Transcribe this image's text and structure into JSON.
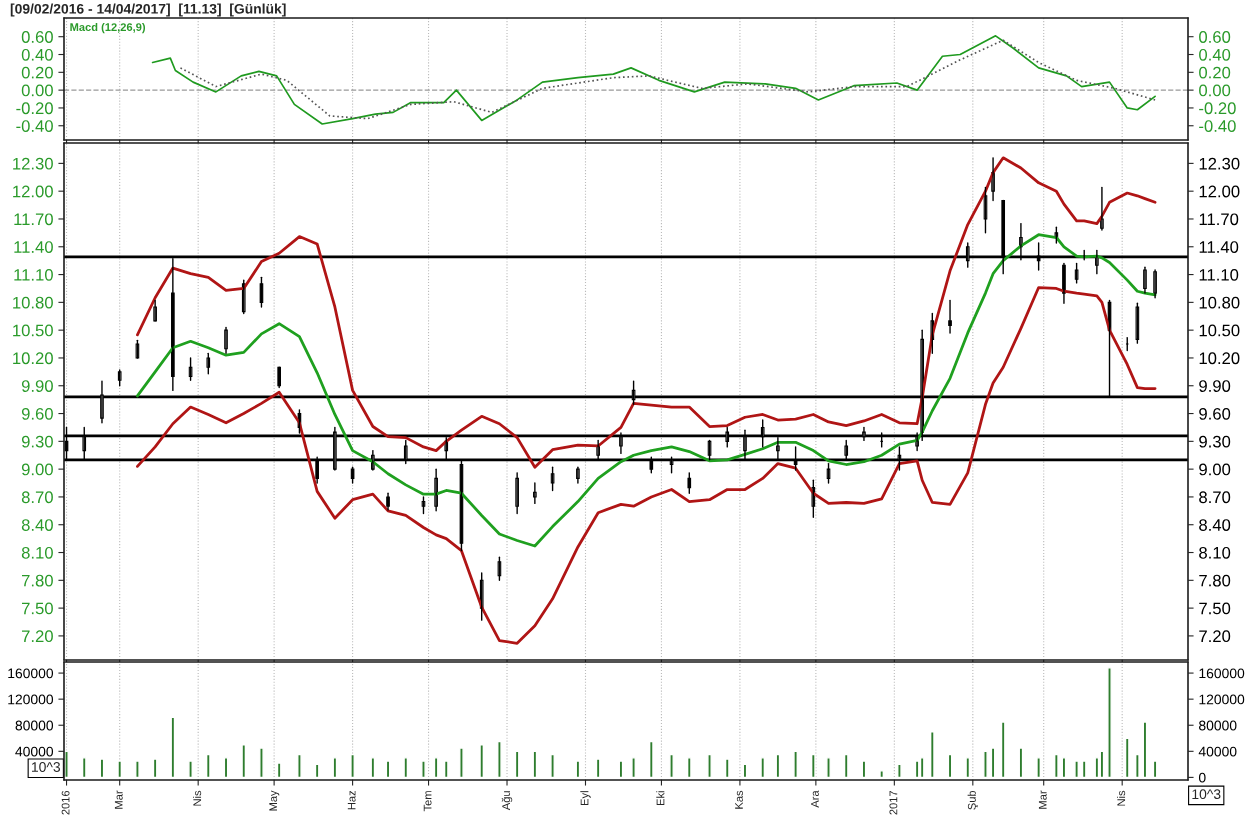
{
  "chart_data": [
    {
      "type": "line",
      "title": "[09/02/2016 - 14/04/2017]  [11.13]  [Günlük]",
      "annotations": [
        "Macd (12,26,9)"
      ],
      "series": [
        {
          "color": "#1f9a1f",
          "line_style": "solid",
          "x": [
            "2016-03-14",
            "2016-03-21",
            "2016-03-23",
            "2016-03-30",
            "2016-04-08",
            "2016-04-18",
            "2016-04-25",
            "2016-05-02",
            "2016-05-09",
            "2016-05-20",
            "2016-06-01",
            "2016-06-10",
            "2016-06-17",
            "2016-06-24",
            "2016-07-07",
            "2016-07-12",
            "2016-07-22",
            "2016-08-05",
            "2016-08-15",
            "2016-08-29",
            "2016-09-12",
            "2016-09-19",
            "2016-09-30",
            "2016-10-14",
            "2016-10-26",
            "2016-11-11",
            "2016-11-23",
            "2016-12-02",
            "2016-12-16",
            "2017-01-02",
            "2017-01-10",
            "2017-01-20",
            "2017-01-27",
            "2017-02-10",
            "2017-02-17",
            "2017-02-27",
            "2017-03-10",
            "2017-03-16",
            "2017-03-27",
            "2017-04-03",
            "2017-04-07",
            "2017-04-14"
          ],
          "values": [
            0.31,
            0.36,
            0.22,
            0.09,
            -0.02,
            0.16,
            0.21,
            0.16,
            -0.16,
            -0.38,
            -0.32,
            -0.27,
            -0.25,
            -0.14,
            -0.14,
            0.0,
            -0.34,
            -0.11,
            0.09,
            0.14,
            0.18,
            0.25,
            0.11,
            -0.02,
            0.09,
            0.07,
            0.02,
            -0.11,
            0.05,
            0.08,
            0.0,
            0.38,
            0.4,
            0.61,
            0.47,
            0.25,
            0.16,
            0.04,
            0.09,
            -0.2,
            -0.22,
            -0.07
          ]
        },
        {
          "color": "#555555",
          "line_style": "dotted",
          "x": [
            "2016-03-25",
            "2016-04-08",
            "2016-04-26",
            "2016-05-06",
            "2016-05-23",
            "2016-06-07",
            "2016-06-24",
            "2016-07-11",
            "2016-07-26",
            "2016-08-15",
            "2016-09-12",
            "2016-09-26",
            "2016-10-17",
            "2016-11-04",
            "2016-11-28",
            "2016-12-16",
            "2017-01-06",
            "2017-01-27",
            "2017-02-13",
            "2017-02-27",
            "2017-03-14",
            "2017-03-29",
            "2017-04-14"
          ],
          "values": [
            0.25,
            0.04,
            0.18,
            0.11,
            -0.29,
            -0.32,
            -0.16,
            -0.13,
            -0.25,
            0.02,
            0.14,
            0.16,
            0.02,
            0.07,
            -0.02,
            0.04,
            0.04,
            0.34,
            0.56,
            0.31,
            0.11,
            0.02,
            -0.11
          ]
        }
      ],
      "ref_lines": [
        {
          "axis": "y",
          "value": 0,
          "color": "#999999",
          "line_style": "dashed"
        }
      ],
      "xlim": [
        "2016-02-08",
        "2017-04-27"
      ],
      "xticks": [
        {
          "value": "2016-02-09",
          "label": null
        },
        {
          "value": "2016-03-01",
          "label": null
        },
        {
          "value": "2016-04-01",
          "label": null
        },
        {
          "value": "2016-05-01",
          "label": null
        },
        {
          "value": "2016-06-01",
          "label": null
        },
        {
          "value": "2016-07-01",
          "label": null
        },
        {
          "value": "2016-08-01",
          "label": null
        },
        {
          "value": "2016-09-01",
          "label": null
        },
        {
          "value": "2016-10-01",
          "label": null
        },
        {
          "value": "2016-11-01",
          "label": null
        },
        {
          "value": "2016-12-01",
          "label": null
        },
        {
          "value": "2017-01-01",
          "label": null
        },
        {
          "value": "2017-02-01",
          "label": null
        },
        {
          "value": "2017-03-01",
          "label": null
        },
        {
          "value": "2017-04-01",
          "label": null
        }
      ],
      "ylim": [
        -0.56,
        0.81
      ],
      "yticks": [
        {
          "value": -0.4,
          "label": "-0.40"
        },
        {
          "value": -0.2,
          "label": "-0.20"
        },
        {
          "value": 0,
          "label": "0.00"
        },
        {
          "value": 0.2,
          "label": "0.20"
        },
        {
          "value": 0.4,
          "label": "0.40"
        },
        {
          "value": 0.6,
          "label": "0.60"
        }
      ],
      "y2lim": [
        -0.56,
        0.81
      ],
      "y2ticks": [
        {
          "value": -0.4,
          "label": "-0.40"
        },
        {
          "value": -0.2,
          "label": "-0.20"
        },
        {
          "value": 0,
          "label": "0.00"
        },
        {
          "value": 0.2,
          "label": "0.20"
        },
        {
          "value": 0.4,
          "label": "0.40"
        },
        {
          "value": 0.6,
          "label": "0.60"
        }
      ],
      "grid": "x",
      "tick_labels": "y"
    },
    {
      "type": "candlestick",
      "x": [
        "2016-02-09",
        "2016-02-16",
        "2016-02-23",
        "2016-03-01",
        "2016-03-08",
        "2016-03-15",
        "2016-03-22",
        "2016-03-29",
        "2016-04-05",
        "2016-04-12",
        "2016-04-19",
        "2016-04-26",
        "2016-05-03",
        "2016-05-11",
        "2016-05-18",
        "2016-05-25",
        "2016-06-01",
        "2016-06-09",
        "2016-06-15",
        "2016-06-22",
        "2016-06-29",
        "2016-07-04",
        "2016-07-08",
        "2016-07-14",
        "2016-07-22",
        "2016-07-29",
        "2016-08-05",
        "2016-08-12",
        "2016-08-19",
        "2016-08-29",
        "2016-09-06",
        "2016-09-15",
        "2016-09-20",
        "2016-09-27",
        "2016-10-05",
        "2016-10-12",
        "2016-10-20",
        "2016-10-27",
        "2016-11-03",
        "2016-11-10",
        "2016-11-16",
        "2016-11-23",
        "2016-11-30",
        "2016-12-06",
        "2016-12-13",
        "2016-12-20",
        "2016-12-27",
        "2017-01-03",
        "2017-01-10",
        "2017-01-12",
        "2017-01-16",
        "2017-01-23",
        "2017-01-30",
        "2017-02-06",
        "2017-02-09",
        "2017-02-13",
        "2017-02-20",
        "2017-02-27",
        "2017-03-06",
        "2017-03-09",
        "2017-03-14",
        "2017-03-17",
        "2017-03-22",
        "2017-03-24",
        "2017-03-27",
        "2017-04-03",
        "2017-04-07",
        "2017-04-10",
        "2017-04-14"
      ],
      "ohlc": [
        [
          9.3,
          9.45,
          9.1,
          9.2
        ],
        [
          9.2,
          9.45,
          9.1,
          9.35
        ],
        [
          9.55,
          9.95,
          9.5,
          9.8
        ],
        [
          9.96,
          10.07,
          9.9,
          10.05
        ],
        [
          10.2,
          10.39,
          10.2,
          10.35
        ],
        [
          10.6,
          10.82,
          10.6,
          10.75
        ],
        [
          10.9,
          11.27,
          9.85,
          10.0
        ],
        [
          10.0,
          10.2,
          9.96,
          10.1
        ],
        [
          10.1,
          10.25,
          10.03,
          10.2
        ],
        [
          10.3,
          10.53,
          10.25,
          10.5
        ],
        [
          10.7,
          11.04,
          10.68,
          11.0
        ],
        [
          11.0,
          11.07,
          10.75,
          10.8
        ],
        [
          10.1,
          10.1,
          9.88,
          9.9
        ],
        [
          9.6,
          9.64,
          9.39,
          9.45
        ],
        [
          9.1,
          9.13,
          8.85,
          8.9
        ],
        [
          9.0,
          9.45,
          8.99,
          9.4
        ],
        [
          9.0,
          9.02,
          8.85,
          8.9
        ],
        [
          9.0,
          9.2,
          8.99,
          9.15
        ],
        [
          8.7,
          8.74,
          8.56,
          8.6
        ],
        [
          9.1,
          9.31,
          9.06,
          9.25
        ],
        [
          8.6,
          8.7,
          8.52,
          8.65
        ],
        [
          8.6,
          9.0,
          8.55,
          8.9
        ],
        [
          9.2,
          9.34,
          9.1,
          9.3
        ],
        [
          9.05,
          9.1,
          8.12,
          8.2
        ],
        [
          7.5,
          7.88,
          7.37,
          7.8
        ],
        [
          7.85,
          8.05,
          7.8,
          8.0
        ],
        [
          8.6,
          8.96,
          8.52,
          8.9
        ],
        [
          8.7,
          8.85,
          8.63,
          8.75
        ],
        [
          8.85,
          9.02,
          8.77,
          8.95
        ],
        [
          8.9,
          9.02,
          8.85,
          9.0
        ],
        [
          9.15,
          9.31,
          9.1,
          9.25
        ],
        [
          9.25,
          9.39,
          9.17,
          9.35
        ],
        [
          9.75,
          9.95,
          9.7,
          9.85
        ],
        [
          9.1,
          9.13,
          8.96,
          9.0
        ],
        [
          9.05,
          9.13,
          8.96,
          9.1
        ],
        [
          8.9,
          8.96,
          8.74,
          8.8
        ],
        [
          9.15,
          9.31,
          9.1,
          9.3
        ],
        [
          9.3,
          9.45,
          9.24,
          9.4
        ],
        [
          9.2,
          9.42,
          9.1,
          9.35
        ],
        [
          9.35,
          9.53,
          9.24,
          9.45
        ],
        [
          9.2,
          9.34,
          9.1,
          9.25
        ],
        [
          9.1,
          9.24,
          8.99,
          9.05
        ],
        [
          8.6,
          8.88,
          8.48,
          8.8
        ],
        [
          8.9,
          9.06,
          8.85,
          9.0
        ],
        [
          9.15,
          9.31,
          9.1,
          9.25
        ],
        [
          9.35,
          9.45,
          9.31,
          9.4
        ],
        [
          9.3,
          9.39,
          9.24,
          9.3
        ],
        [
          9.1,
          9.24,
          8.99,
          9.15
        ],
        [
          9.25,
          9.39,
          9.2,
          9.35
        ],
        [
          9.4,
          10.5,
          9.31,
          10.4
        ],
        [
          10.4,
          10.68,
          10.25,
          10.6
        ],
        [
          10.6,
          10.82,
          10.47,
          10.55
        ],
        [
          11.25,
          11.44,
          11.18,
          11.4
        ],
        [
          11.7,
          12.04,
          11.55,
          11.95
        ],
        [
          12.0,
          12.36,
          11.9,
          12.2
        ],
        [
          11.9,
          11.9,
          11.11,
          11.3
        ],
        [
          11.4,
          11.65,
          11.26,
          11.5
        ],
        [
          11.3,
          11.44,
          11.15,
          11.25
        ],
        [
          11.5,
          11.61,
          11.44,
          11.55
        ],
        [
          11.2,
          11.22,
          10.79,
          10.9
        ],
        [
          11.05,
          11.22,
          11.01,
          11.15
        ],
        [
          11.3,
          11.36,
          11.26,
          11.3
        ],
        [
          11.2,
          11.36,
          11.11,
          11.3
        ],
        [
          11.6,
          12.04,
          11.58,
          11.7
        ],
        [
          10.8,
          10.82,
          9.78,
          10.5
        ],
        [
          10.35,
          10.42,
          10.28,
          10.35
        ],
        [
          10.4,
          10.79,
          10.36,
          10.75
        ],
        [
          10.95,
          11.18,
          10.9,
          11.15
        ],
        [
          10.9,
          11.15,
          10.85,
          11.13
        ]
      ],
      "series": [
        {
          "type": "line",
          "color": "#b01515",
          "values": [
            null,
            null,
            null,
            null,
            10.45,
            10.85,
            11.17,
            11.11,
            11.07,
            10.93,
            10.95,
            11.24,
            11.33,
            11.51,
            11.43,
            10.75,
            9.85,
            9.46,
            9.35,
            9.34,
            9.24,
            9.2,
            9.3,
            9.42,
            9.57,
            9.49,
            9.34,
            9.02,
            9.21,
            9.26,
            9.25,
            9.45,
            9.71,
            9.69,
            9.67,
            9.67,
            9.46,
            9.47,
            9.56,
            9.59,
            9.53,
            9.54,
            9.59,
            9.51,
            9.47,
            9.52,
            9.59,
            9.5,
            9.49,
            9.77,
            10.45,
            11.14,
            11.64,
            12.0,
            12.2,
            12.36,
            12.25,
            12.09,
            12.0,
            11.86,
            11.68,
            11.68,
            11.65,
            11.73,
            11.88,
            11.98,
            11.95,
            11.92,
            11.88
          ]
        },
        {
          "type": "line",
          "color": "#1fa01f",
          "values": [
            null,
            null,
            null,
            null,
            9.79,
            10.05,
            10.31,
            10.38,
            10.31,
            10.23,
            10.26,
            10.46,
            10.57,
            10.43,
            10.04,
            9.59,
            9.2,
            9.08,
            8.95,
            8.83,
            8.73,
            8.73,
            8.77,
            8.74,
            8.5,
            8.3,
            8.23,
            8.17,
            8.38,
            8.65,
            8.9,
            9.08,
            9.15,
            9.2,
            9.24,
            9.19,
            9.09,
            9.1,
            9.16,
            9.22,
            9.29,
            9.29,
            9.2,
            9.09,
            9.05,
            9.08,
            9.15,
            9.27,
            9.31,
            9.4,
            9.63,
            9.98,
            10.47,
            10.9,
            11.11,
            11.25,
            11.41,
            11.53,
            11.5,
            11.4,
            11.3,
            11.29,
            11.3,
            11.28,
            11.23,
            11.04,
            10.92,
            10.9,
            10.88
          ]
        },
        {
          "type": "line",
          "color": "#b01515",
          "values": [
            null,
            null,
            null,
            null,
            9.03,
            9.24,
            9.49,
            9.67,
            9.59,
            9.5,
            9.6,
            9.71,
            9.83,
            9.5,
            8.76,
            8.47,
            8.67,
            8.73,
            8.55,
            8.5,
            8.37,
            8.29,
            8.25,
            8.12,
            7.51,
            7.15,
            7.12,
            7.31,
            7.6,
            8.16,
            8.53,
            8.62,
            8.6,
            8.7,
            8.78,
            8.65,
            8.67,
            8.78,
            8.78,
            8.9,
            9.06,
            9.01,
            8.74,
            8.63,
            8.64,
            8.63,
            8.68,
            9.06,
            9.09,
            8.88,
            8.64,
            8.62,
            8.96,
            9.7,
            9.93,
            10.1,
            10.52,
            10.96,
            10.95,
            10.92,
            10.9,
            10.89,
            10.87,
            10.8,
            10.5,
            10.13,
            9.88,
            9.87,
            9.87
          ]
        }
      ],
      "ref_lines": [
        {
          "axis": "y",
          "value": 11.29,
          "color": "#000000"
        },
        {
          "axis": "y",
          "value": 9.78,
          "color": "#000000"
        },
        {
          "axis": "y",
          "value": 9.36,
          "color": "#000000"
        },
        {
          "axis": "y",
          "value": 9.1,
          "color": "#000000"
        }
      ],
      "xlim": [
        "2016-02-08",
        "2017-04-27"
      ],
      "xticks": [
        {
          "value": "2016-02-09",
          "label": null
        },
        {
          "value": "2016-03-01",
          "label": null
        },
        {
          "value": "2016-04-01",
          "label": null
        },
        {
          "value": "2016-05-01",
          "label": null
        },
        {
          "value": "2016-06-01",
          "label": null
        },
        {
          "value": "2016-07-01",
          "label": null
        },
        {
          "value": "2016-08-01",
          "label": null
        },
        {
          "value": "2016-09-01",
          "label": null
        },
        {
          "value": "2016-10-01",
          "label": null
        },
        {
          "value": "2016-11-01",
          "label": null
        },
        {
          "value": "2016-12-01",
          "label": null
        },
        {
          "value": "2017-01-01",
          "label": null
        },
        {
          "value": "2017-02-01",
          "label": null
        },
        {
          "value": "2017-03-01",
          "label": null
        },
        {
          "value": "2017-04-01",
          "label": null
        }
      ],
      "ylim": [
        6.94,
        12.52
      ],
      "yticks": [
        {
          "value": 7.2,
          "label": "7.20"
        },
        {
          "value": 7.5,
          "label": "7.50"
        },
        {
          "value": 7.8,
          "label": "7.80"
        },
        {
          "value": 8.1,
          "label": "8.10"
        },
        {
          "value": 8.4,
          "label": "8.40"
        },
        {
          "value": 8.7,
          "label": "8.70"
        },
        {
          "value": 9.0,
          "label": "9.00"
        },
        {
          "value": 9.3,
          "label": "9.30"
        },
        {
          "value": 9.6,
          "label": "9.60"
        },
        {
          "value": 9.9,
          "label": "9.90"
        },
        {
          "value": 10.2,
          "label": "10.20"
        },
        {
          "value": 10.5,
          "label": "10.50"
        },
        {
          "value": 10.8,
          "label": "10.80"
        },
        {
          "value": 11.1,
          "label": "11.10"
        },
        {
          "value": 11.4,
          "label": "11.40"
        },
        {
          "value": 11.7,
          "label": "11.70"
        },
        {
          "value": 12.0,
          "label": "12.00"
        },
        {
          "value": 12.3,
          "label": "12.30"
        }
      ],
      "y2lim": [
        6.94,
        12.52
      ],
      "y2ticks": [
        {
          "value": 7.2,
          "label": "7.20"
        },
        {
          "value": 7.5,
          "label": "7.50"
        },
        {
          "value": 7.8,
          "label": "7.80"
        },
        {
          "value": 8.1,
          "label": "8.10"
        },
        {
          "value": 8.4,
          "label": "8.40"
        },
        {
          "value": 8.7,
          "label": "8.70"
        },
        {
          "value": 9.0,
          "label": "9.00"
        },
        {
          "value": 9.3,
          "label": "9.30"
        },
        {
          "value": 9.6,
          "label": "9.60"
        },
        {
          "value": 9.9,
          "label": "9.90"
        },
        {
          "value": 10.2,
          "label": "10.20"
        },
        {
          "value": 10.5,
          "label": "10.50"
        },
        {
          "value": 10.8,
          "label": "10.80"
        },
        {
          "value": 11.1,
          "label": "11.10"
        },
        {
          "value": 11.4,
          "label": "11.40"
        },
        {
          "value": 11.7,
          "label": "11.70"
        },
        {
          "value": 12.0,
          "label": "12.00"
        },
        {
          "value": 12.3,
          "label": "12.30"
        }
      ],
      "grid": "x",
      "tick_labels": "y"
    },
    {
      "type": "bar",
      "color": "#2e7d2e",
      "annotations": [
        "10^3",
        "10^3"
      ],
      "x": [
        "2016-02-09",
        "2016-02-16",
        "2016-02-23",
        "2016-03-01",
        "2016-03-08",
        "2016-03-15",
        "2016-03-22",
        "2016-03-29",
        "2016-04-05",
        "2016-04-12",
        "2016-04-19",
        "2016-04-26",
        "2016-05-03",
        "2016-05-11",
        "2016-05-18",
        "2016-05-25",
        "2016-06-01",
        "2016-06-09",
        "2016-06-15",
        "2016-06-22",
        "2016-06-29",
        "2016-07-04",
        "2016-07-08",
        "2016-07-14",
        "2016-07-22",
        "2016-07-29",
        "2016-08-05",
        "2016-08-12",
        "2016-08-19",
        "2016-08-29",
        "2016-09-06",
        "2016-09-15",
        "2016-09-20",
        "2016-09-27",
        "2016-10-05",
        "2016-10-12",
        "2016-10-20",
        "2016-10-27",
        "2016-11-03",
        "2016-11-10",
        "2016-11-16",
        "2016-11-23",
        "2016-11-30",
        "2016-12-06",
        "2016-12-13",
        "2016-12-20",
        "2016-12-27",
        "2017-01-03",
        "2017-01-10",
        "2017-01-12",
        "2017-01-16",
        "2017-01-23",
        "2017-01-30",
        "2017-02-06",
        "2017-02-09",
        "2017-02-13",
        "2017-02-20",
        "2017-02-27",
        "2017-03-06",
        "2017-03-09",
        "2017-03-14",
        "2017-03-17",
        "2017-03-22",
        "2017-03-24",
        "2017-03-27",
        "2017-04-03",
        "2017-04-07",
        "2017-04-10",
        "2017-04-14"
      ],
      "values": [
        40000,
        30000,
        28000,
        25000,
        25000,
        28000,
        92000,
        25000,
        35000,
        30000,
        50000,
        45000,
        22000,
        35000,
        20000,
        30000,
        35000,
        30000,
        25000,
        30000,
        25000,
        30000,
        25000,
        45000,
        50000,
        55000,
        40000,
        40000,
        35000,
        25000,
        28000,
        25000,
        30000,
        55000,
        35000,
        30000,
        35000,
        28000,
        20000,
        30000,
        35000,
        40000,
        35000,
        30000,
        35000,
        25000,
        10000,
        20000,
        25000,
        30000,
        70000,
        35000,
        30000,
        40000,
        45000,
        85000,
        45000,
        30000,
        35000,
        30000,
        25000,
        25000,
        30000,
        40000,
        168000,
        60000,
        35000,
        85000,
        25000
      ],
      "xlim": [
        "2016-02-08",
        "2017-04-27"
      ],
      "xticks": [
        {
          "value": "2016-02-09",
          "label": "2016"
        },
        {
          "value": "2016-03-01",
          "label": "Mar"
        },
        {
          "value": "2016-04-01",
          "label": "Nis"
        },
        {
          "value": "2016-05-01",
          "label": "May"
        },
        {
          "value": "2016-06-01",
          "label": "Haz"
        },
        {
          "value": "2016-07-01",
          "label": "Tem"
        },
        {
          "value": "2016-08-01",
          "label": "Ağu"
        },
        {
          "value": "2016-09-01",
          "label": "Eyl"
        },
        {
          "value": "2016-10-01",
          "label": "Eki"
        },
        {
          "value": "2016-11-01",
          "label": "Kas"
        },
        {
          "value": "2016-12-01",
          "label": "Ara"
        },
        {
          "value": "2017-01-01",
          "label": "2017"
        },
        {
          "value": "2017-02-01",
          "label": "Şub"
        },
        {
          "value": "2017-03-01",
          "label": "Mar"
        },
        {
          "value": "2017-04-01",
          "label": "Nis"
        }
      ],
      "ylim": [
        -4000,
        177000
      ],
      "yticks": [
        40000,
        80000,
        120000,
        160000
      ],
      "y2lim": [
        -4000,
        177000
      ],
      "y2ticks": [
        0,
        40000,
        80000,
        120000,
        160000
      ],
      "grid": "x"
    }
  ]
}
